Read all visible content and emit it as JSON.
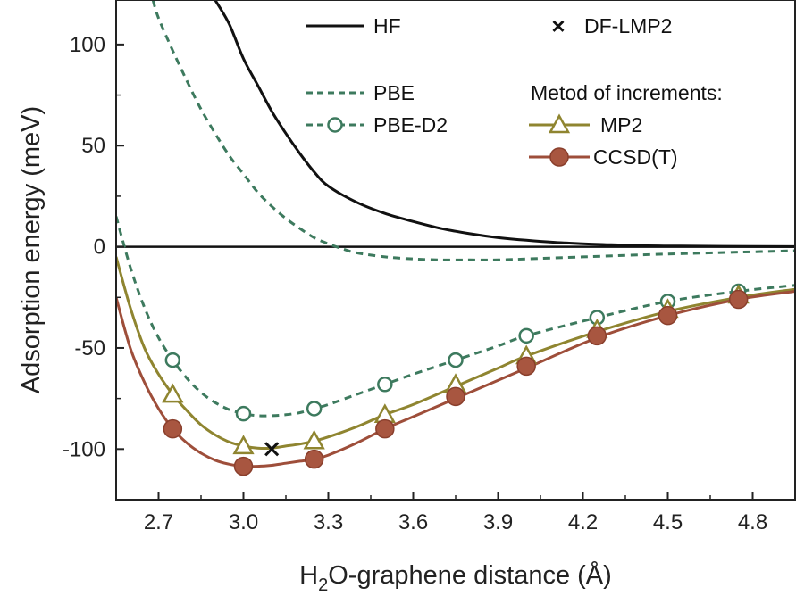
{
  "chart_data": {
    "type": "line",
    "title": "",
    "xlabel": {
      "prefix": "H",
      "sub": "2",
      "rest": "O-graphene distance (Å)"
    },
    "ylabel": "Adsorption energy (meV)",
    "xlim": [
      2.55,
      4.95
    ],
    "ylim": [
      -125,
      122
    ],
    "xticks": [
      2.7,
      3.0,
      3.3,
      3.6,
      3.9,
      4.2,
      4.5,
      4.8
    ],
    "xtick_labels": [
      "2.7",
      "3.0",
      "3.3",
      "3.6",
      "3.9",
      "4.2",
      "4.5",
      "4.8"
    ],
    "yticks": [
      -100,
      -50,
      0,
      50,
      100
    ],
    "ytick_labels": [
      "-100",
      "-50",
      "0",
      "50",
      "100"
    ],
    "zero_line": true,
    "grid": false,
    "legend_heading": "Metod of increments:",
    "series": [
      {
        "name": "HF",
        "color": "#111111",
        "line": "solid",
        "marker": "none",
        "x": [
          2.9,
          2.95,
          3.0,
          3.05,
          3.1,
          3.15,
          3.2,
          3.25,
          3.3,
          3.4,
          3.5,
          3.6,
          3.7,
          3.8,
          3.9,
          4.0,
          4.1,
          4.2,
          4.3,
          4.4,
          4.5,
          4.7,
          4.95
        ],
        "y": [
          122,
          110,
          93,
          80,
          67,
          56,
          46,
          37,
          30,
          22,
          16.5,
          12.5,
          9,
          6.5,
          4.5,
          3.2,
          2.2,
          1.5,
          1.0,
          0.6,
          0.4,
          0.2,
          0.1
        ]
      },
      {
        "name": "PBE",
        "color": "#3d7a5e",
        "line": "dashed",
        "marker": "none",
        "x": [
          2.68,
          2.7,
          2.75,
          2.8,
          2.85,
          2.9,
          2.95,
          3.0,
          3.05,
          3.1,
          3.15,
          3.2,
          3.25,
          3.3,
          3.35,
          3.4,
          3.5,
          3.6,
          3.7,
          3.8,
          3.9,
          4.0,
          4.2,
          4.4,
          4.6,
          4.8,
          4.95
        ],
        "y": [
          122,
          113,
          97,
          82,
          68,
          56,
          45,
          36,
          27,
          20,
          14,
          9,
          4.5,
          1.5,
          -1,
          -3,
          -5,
          -6,
          -6.5,
          -6.5,
          -6.5,
          -6,
          -5,
          -4,
          -3.2,
          -2.5,
          -2
        ]
      },
      {
        "name": "PBE-D2",
        "color": "#3d7a5e",
        "line": "dashed",
        "marker": "open-circle",
        "x": [
          2.55,
          2.6,
          2.65,
          2.7,
          2.75,
          2.8,
          2.85,
          2.9,
          2.95,
          3.0,
          3.05,
          3.1,
          3.15,
          3.2,
          3.25,
          3.3,
          3.4,
          3.5,
          3.6,
          3.75,
          3.9,
          4.0,
          4.25,
          4.5,
          4.75,
          4.95
        ],
        "y": [
          15,
          -10,
          -30,
          -45,
          -56,
          -65,
          -72,
          -77,
          -80.5,
          -82.5,
          -83.5,
          -83.5,
          -83,
          -82,
          -80,
          -78,
          -73,
          -68,
          -63,
          -56,
          -49,
          -44,
          -35,
          -27,
          -22,
          -19
        ],
        "marker_x": [
          2.75,
          3.0,
          3.25,
          3.5,
          3.75,
          4.0,
          4.25,
          4.5,
          4.75
        ],
        "marker_y": [
          -56,
          -82.5,
          -80,
          -68,
          -56,
          -44,
          -35,
          -27,
          -22
        ]
      },
      {
        "name": "MP2",
        "color": "#8f8530",
        "line": "solid",
        "marker": "open-triangle",
        "x": [
          2.55,
          2.6,
          2.65,
          2.7,
          2.75,
          2.8,
          2.85,
          2.9,
          2.95,
          3.0,
          3.05,
          3.1,
          3.15,
          3.2,
          3.25,
          3.3,
          3.4,
          3.5,
          3.6,
          3.75,
          3.9,
          4.0,
          4.25,
          4.5,
          4.75,
          4.95
        ],
        "y": [
          -5,
          -30,
          -50,
          -63,
          -73,
          -81,
          -88,
          -93,
          -96.5,
          -98.5,
          -99.5,
          -99.5,
          -98.5,
          -97.5,
          -96,
          -94,
          -89,
          -83,
          -78,
          -69,
          -60,
          -54,
          -42,
          -32,
          -25,
          -21
        ],
        "marker_x": [
          2.75,
          3.0,
          3.25,
          3.5,
          3.75,
          4.0,
          4.25,
          4.5,
          4.75
        ],
        "marker_y": [
          -73,
          -98.5,
          -96,
          -83,
          -68,
          -54,
          -41,
          -31,
          -24
        ]
      },
      {
        "name": "CCSD(T)",
        "color": "#9e4e3a",
        "line": "solid",
        "marker": "filled-circle",
        "x": [
          2.55,
          2.6,
          2.65,
          2.7,
          2.75,
          2.8,
          2.85,
          2.9,
          2.95,
          3.0,
          3.05,
          3.1,
          3.15,
          3.2,
          3.25,
          3.3,
          3.4,
          3.5,
          3.6,
          3.75,
          3.9,
          4.0,
          4.25,
          4.5,
          4.75,
          4.95
        ],
        "y": [
          -25,
          -50,
          -67,
          -80,
          -90,
          -97,
          -102,
          -105.5,
          -107.5,
          -108.5,
          -108.5,
          -108,
          -107,
          -106,
          -105,
          -103,
          -97,
          -90,
          -84,
          -75,
          -66,
          -60,
          -45,
          -34,
          -26,
          -22
        ],
        "marker_x": [
          2.75,
          3.0,
          3.25,
          3.5,
          3.75,
          4.0,
          4.25,
          4.5,
          4.75
        ],
        "marker_y": [
          -90,
          -108.5,
          -105,
          -90,
          -74,
          -59,
          -44,
          -34,
          -26
        ]
      },
      {
        "name": "DF-LMP2",
        "color": "#111111",
        "line": "none",
        "marker": "cross",
        "x": [
          3.1
        ],
        "y": [
          -100
        ]
      }
    ]
  }
}
